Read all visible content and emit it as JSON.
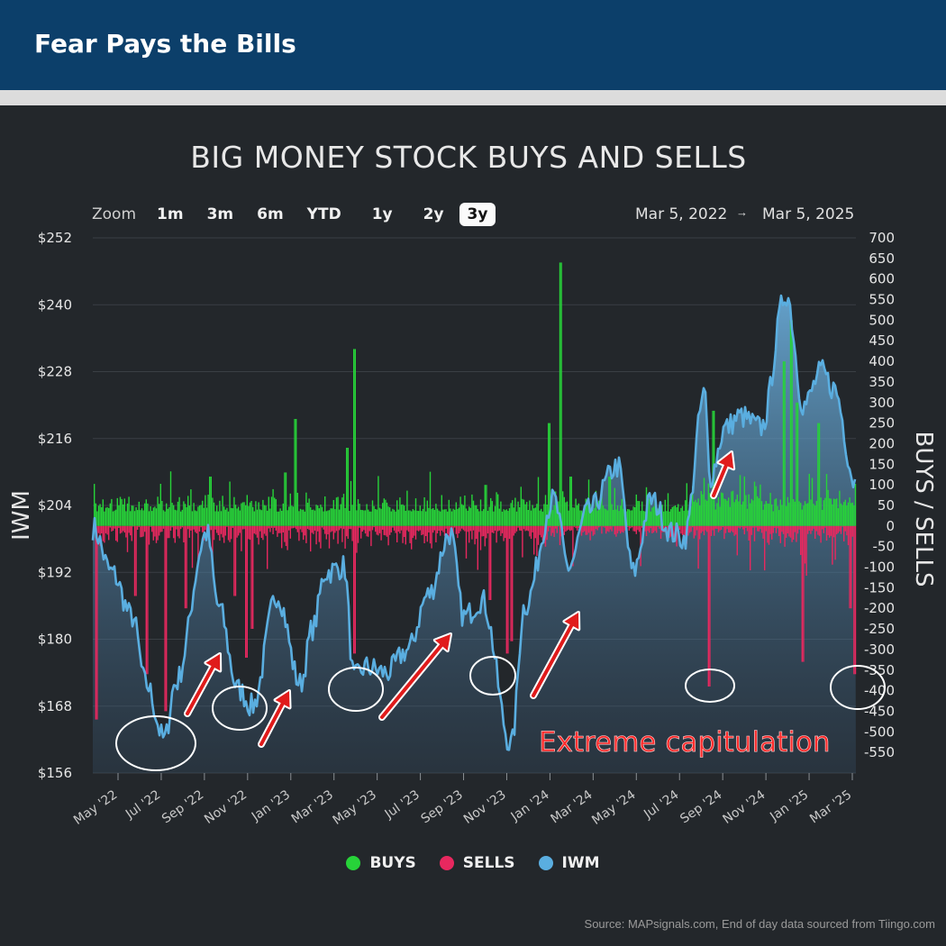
{
  "banner": {
    "title": "Fear Pays the Bills"
  },
  "zoom": {
    "label": "Zoom",
    "buttons": [
      "1m",
      "3m",
      "6m",
      "YTD",
      "1y",
      "2y",
      "3y"
    ],
    "active": "3y"
  },
  "range": {
    "from": "Mar 5, 2022",
    "arrow": "→",
    "to": "Mar 5, 2025"
  },
  "annotation": "Extreme capitulation",
  "source": "Source: MAPsignals.com, End of day data sourced from Tiingo.com",
  "colors": {
    "buys": "#27d339",
    "sells": "#e8285f",
    "iwm": "#5aaee0",
    "annotation": "#ff2a2a"
  },
  "chart_data": {
    "type": "bar",
    "title": "BIG MONEY STOCK BUYS AND SELLS",
    "y_left_label": "IWM",
    "y_right_label": "BUYS / SELLS",
    "y_left_ticks": [
      "$252",
      "$240",
      "$228",
      "$216",
      "$204",
      "$192",
      "$180",
      "$168",
      "$156"
    ],
    "y_left_range": [
      156,
      252
    ],
    "y_right_ticks": [
      "700",
      "650",
      "600",
      "550",
      "500",
      "450",
      "400",
      "350",
      "300",
      "250",
      "200",
      "150",
      "100",
      "50",
      "0",
      "-50",
      "-100",
      "-150",
      "-200",
      "-250",
      "-300",
      "-350",
      "-400",
      "-450",
      "-500",
      "-550"
    ],
    "y_right_range": [
      -600,
      700
    ],
    "x_ticks": [
      "May '22",
      "Jul '22",
      "Sep '22",
      "Nov '22",
      "Jan '23",
      "Mar '23",
      "May '23",
      "Jul '23",
      "Sep '23",
      "Nov '23",
      "Jan '24",
      "Mar '24",
      "May '24",
      "Jul '24",
      "Sep '24",
      "Nov '24",
      "Jan '25",
      "Mar '25"
    ],
    "x_range": [
      "2022-03-05",
      "2025-03-05"
    ],
    "legend": [
      "BUYS",
      "SELLS",
      "IWM"
    ],
    "legend_position": "bottom",
    "series": [
      {
        "name": "IWM",
        "type": "area",
        "x": [
          "2022-03-05",
          "2022-04-01",
          "2022-05-01",
          "2022-05-20",
          "2022-06-16",
          "2022-07-01",
          "2022-08-16",
          "2022-09-01",
          "2022-09-30",
          "2022-10-20",
          "2022-11-25",
          "2022-12-28",
          "2023-01-15",
          "2023-02-02",
          "2023-03-01",
          "2023-03-15",
          "2023-04-01",
          "2023-05-01",
          "2023-05-31",
          "2023-06-30",
          "2023-07-31",
          "2023-08-20",
          "2023-09-15",
          "2023-10-27",
          "2023-11-15",
          "2023-12-27",
          "2024-01-17",
          "2024-02-15",
          "2024-03-28",
          "2024-04-19",
          "2024-05-15",
          "2024-06-15",
          "2024-07-01",
          "2024-07-31",
          "2024-08-07",
          "2024-08-30",
          "2024-09-20",
          "2024-10-20",
          "2024-11-25",
          "2024-12-20",
          "2025-01-15",
          "2025-02-01",
          "2025-03-05"
        ],
        "values": [
          200,
          192,
          184,
          172,
          162,
          172,
          199,
          186,
          171,
          168,
          188,
          172,
          182,
          192,
          193,
          173,
          175,
          174,
          178,
          188,
          199,
          184,
          187,
          161,
          186,
          205,
          193,
          203,
          211,
          192,
          205,
          199,
          198,
          224,
          209,
          218,
          220,
          218,
          242,
          222,
          228,
          225,
          208
        ]
      },
      {
        "name": "BUYS",
        "type": "bar",
        "spikes": [
          [
            "2022-08-20",
            120
          ],
          [
            "2022-12-05",
            130
          ],
          [
            "2022-12-20",
            260
          ],
          [
            "2023-03-05",
            190
          ],
          [
            "2023-03-14",
            430
          ],
          [
            "2023-09-20",
            100
          ],
          [
            "2023-12-20",
            250
          ],
          [
            "2024-01-05",
            640
          ],
          [
            "2024-01-20",
            120
          ],
          [
            "2024-03-15",
            120
          ],
          [
            "2024-08-12",
            280
          ],
          [
            "2024-11-20",
            400
          ],
          [
            "2024-12-01",
            500
          ],
          [
            "2024-12-10",
            300
          ],
          [
            "2025-01-10",
            250
          ]
        ]
      },
      {
        "name": "SELLS",
        "type": "bar",
        "spikes": [
          [
            "2022-03-10",
            -470
          ],
          [
            "2022-05-05",
            -170
          ],
          [
            "2022-05-20",
            -360
          ],
          [
            "2022-06-16",
            -450
          ],
          [
            "2022-07-15",
            -200
          ],
          [
            "2022-09-25",
            -170
          ],
          [
            "2022-10-10",
            -320
          ],
          [
            "2022-10-18",
            -250
          ],
          [
            "2023-03-14",
            -310
          ],
          [
            "2023-09-25",
            -180
          ],
          [
            "2023-10-20",
            -310
          ],
          [
            "2023-10-27",
            -280
          ],
          [
            "2024-08-05",
            -390
          ],
          [
            "2024-12-18",
            -330
          ],
          [
            "2025-02-25",
            -200
          ],
          [
            "2025-03-03",
            -360
          ]
        ]
      }
    ]
  }
}
